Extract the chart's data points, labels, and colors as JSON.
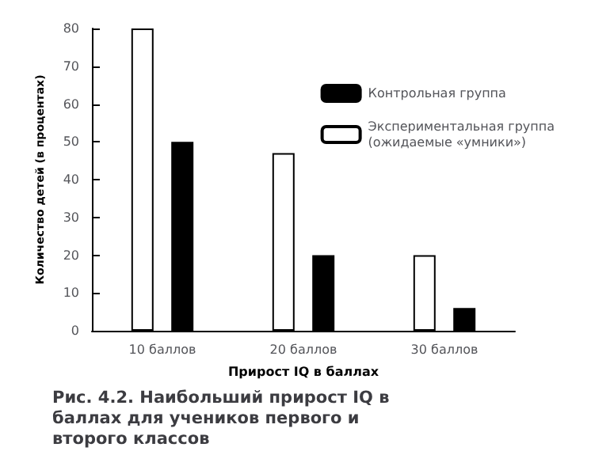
{
  "chart_data": {
    "type": "bar",
    "title": "Рис. 4.2. Наибольший прирост IQ в баллах для учеников первого и второго классов",
    "xlabel": "Прирост IQ в баллах",
    "ylabel": "Количество детей (в процентах)",
    "categories": [
      "10 баллов",
      "20 баллов",
      "30 баллов"
    ],
    "series": [
      {
        "name": "Экспериментальная группа\n(ожидаемые «умники»)",
        "color": "#ffffff",
        "values": [
          80,
          47,
          20
        ]
      },
      {
        "name": "Контрольная группа",
        "color": "#000000",
        "values": [
          50,
          20,
          6
        ]
      }
    ],
    "ylim": [
      0,
      80
    ],
    "yticks": [
      0,
      10,
      20,
      30,
      40,
      50,
      60,
      70,
      80
    ],
    "grid": false,
    "legend": "top right"
  }
}
